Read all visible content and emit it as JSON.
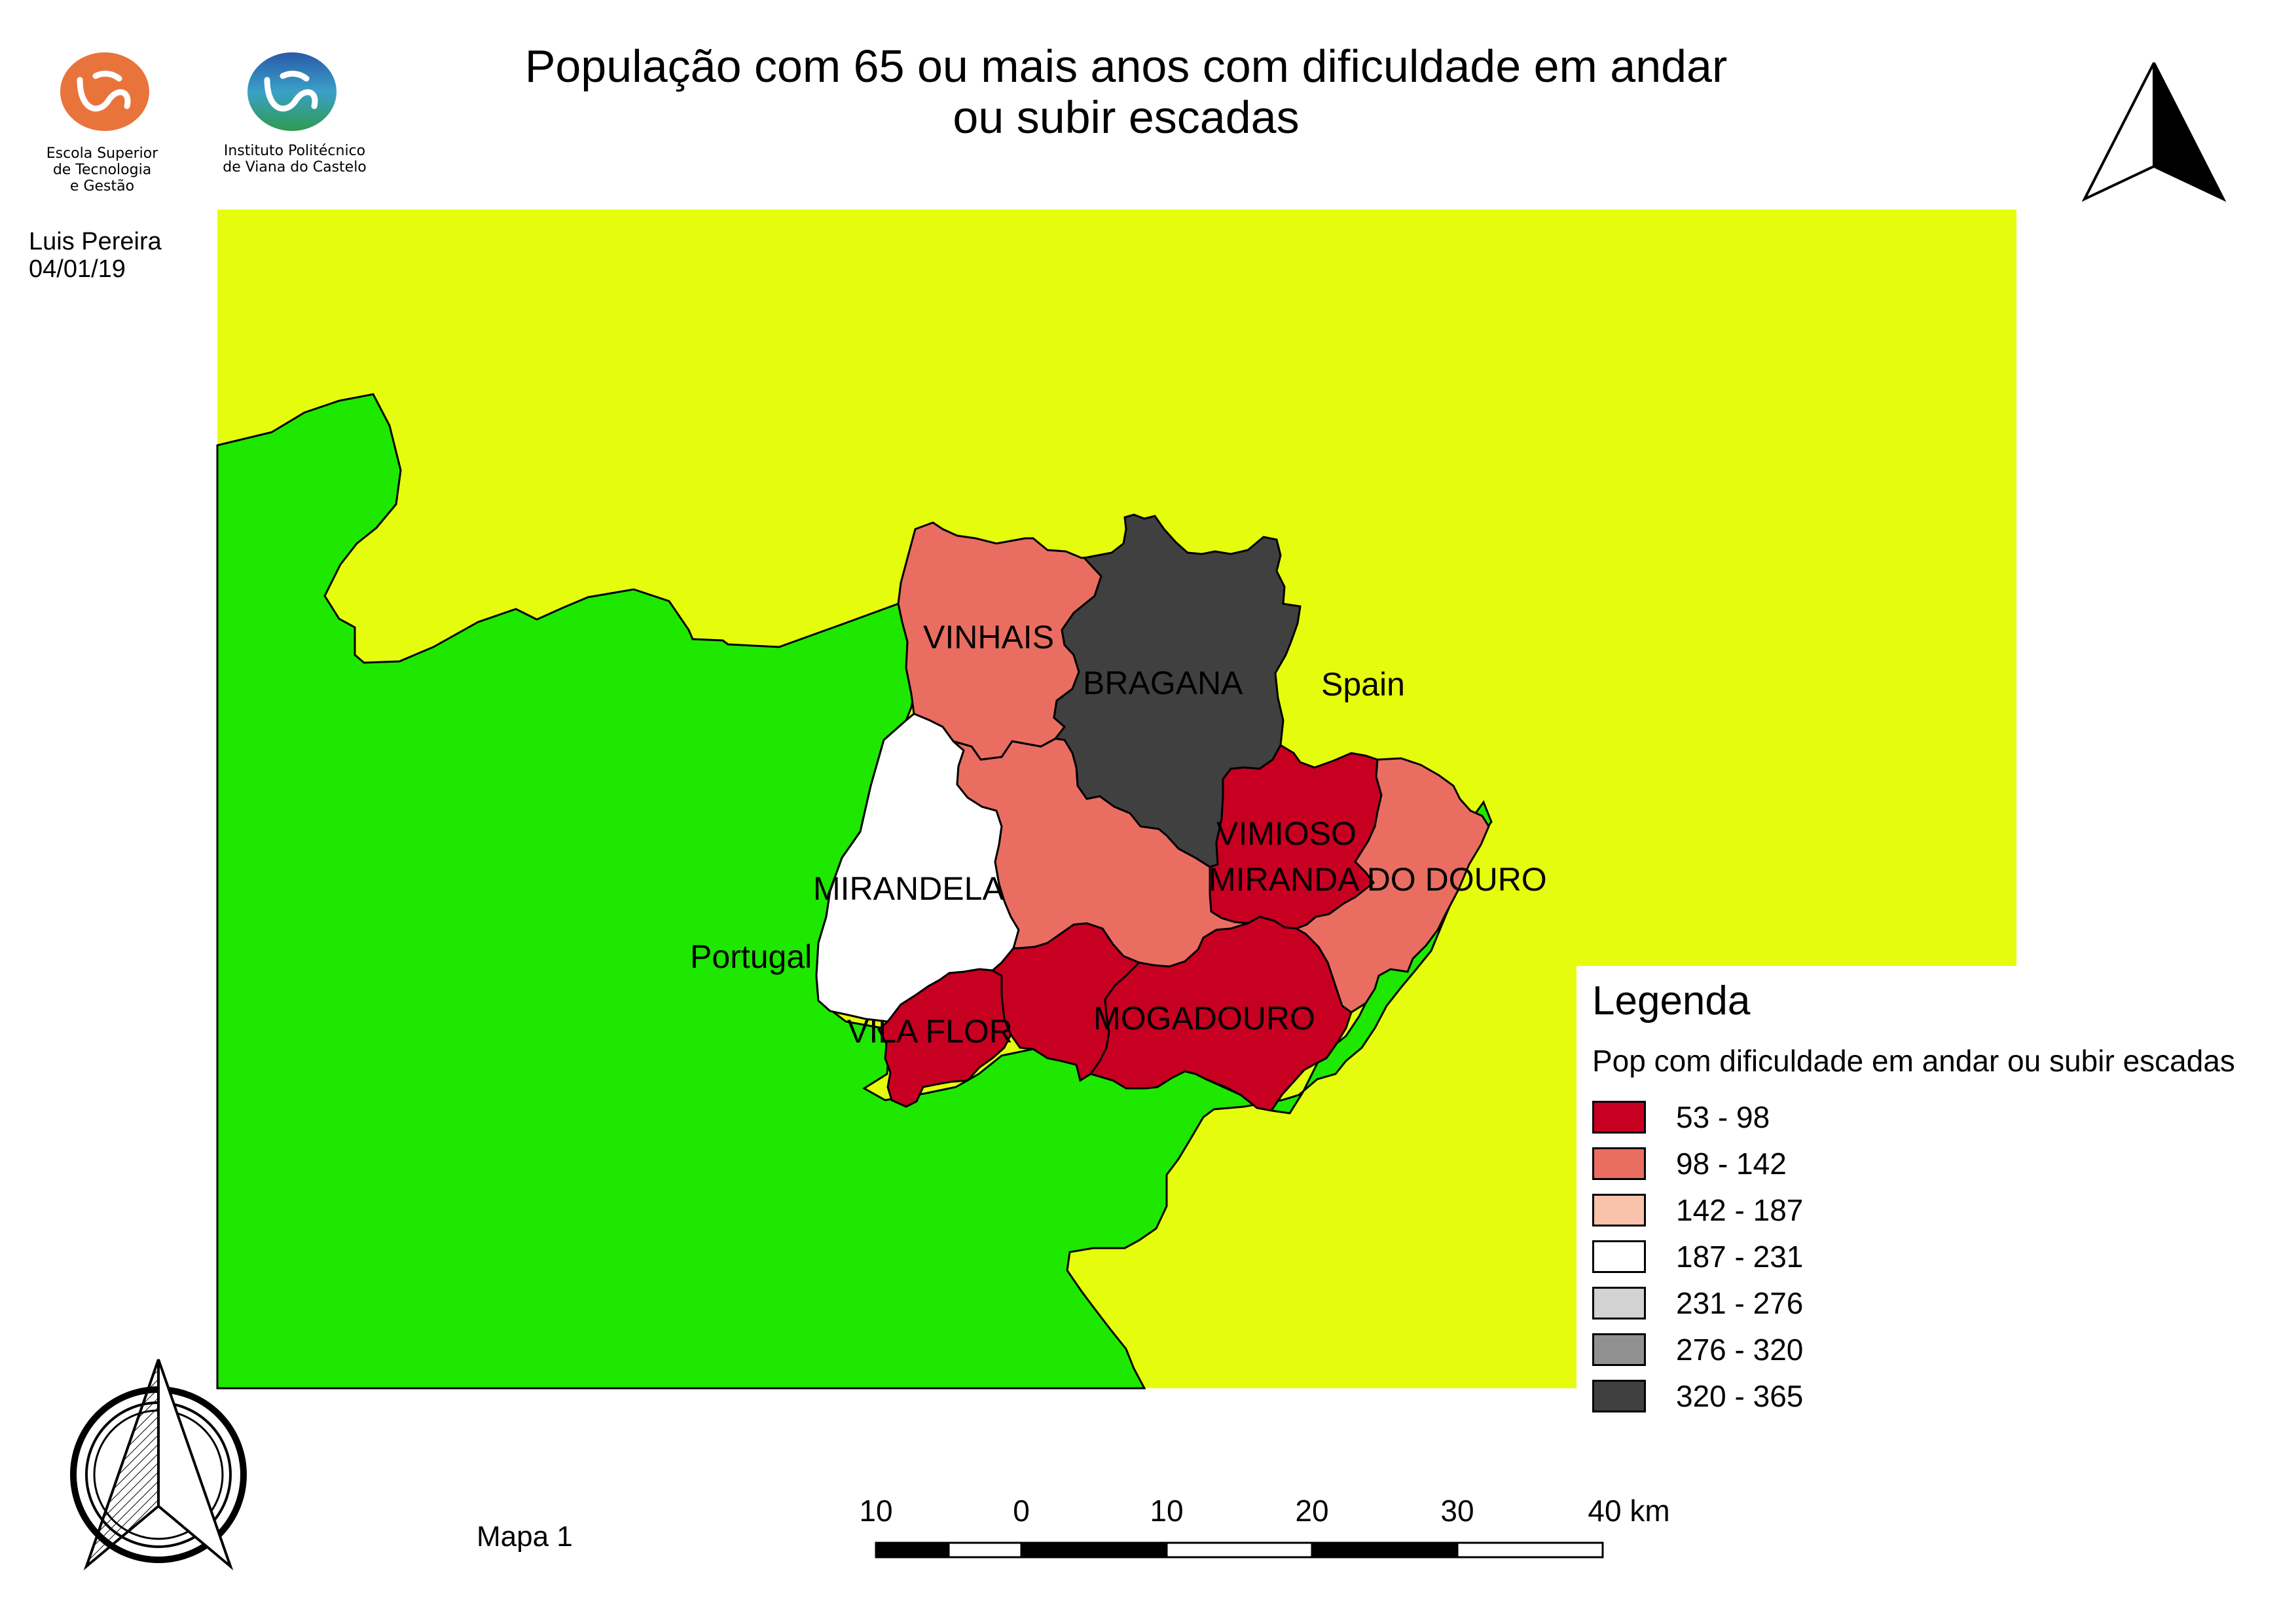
{
  "title_line1": "População com 65 ou mais anos com dificuldade em andar",
  "title_line2": "ou subir escadas",
  "logos": {
    "estg": {
      "line1": "Escola Superior",
      "line2": "de Tecnologia",
      "line3": "e Gestão",
      "color": "#e8743b"
    },
    "ipvc": {
      "line1": "Instituto Politécnico",
      "line2": "de Viana do Castelo",
      "color": "#2f8f4f"
    }
  },
  "author": {
    "name": "Luis Pereira",
    "date": "04/01/19"
  },
  "map_id": "Mapa 1",
  "countries": {
    "portugal": {
      "label": "Portugal",
      "color": "#1ee800"
    },
    "spain": {
      "label": "Spain",
      "color": "#e6fc0d"
    }
  },
  "municipalities": {
    "vinhais": {
      "label": "VINHAIS",
      "value_class": "98 - 142"
    },
    "braganca": {
      "label": "BRAGANA",
      "value_class": "320 - 365"
    },
    "vimioso": {
      "label": "VIMIOSO",
      "value_class": "53 - 98"
    },
    "miranda": {
      "label": "MIRANDA DO DOURO",
      "value_class": "98 - 142"
    },
    "mirandela": {
      "label": "MIRANDELA",
      "value_class": "187 - 231"
    },
    "macedo": {
      "label": "",
      "value_class": "98 - 142"
    },
    "vilaflor": {
      "label": "VILA FLOR",
      "value_class": "53 - 98"
    },
    "alfandega": {
      "label": "",
      "value_class": "53 - 98"
    },
    "mogadouro": {
      "label": "MOGADOURO",
      "value_class": "53 - 98"
    }
  },
  "legend": {
    "title": "Legenda",
    "subtitle": "Pop com dificuldade em andar ou subir escadas",
    "classes": [
      {
        "label": "53 - 98",
        "color": "#c70021"
      },
      {
        "label": "98 - 142",
        "color": "#e96e61"
      },
      {
        "label": "142 - 187",
        "color": "#f8c2ab"
      },
      {
        "label": "187 - 231",
        "color": "#ffffff"
      },
      {
        "label": "231 - 276",
        "color": "#d2d2d2"
      },
      {
        "label": "276 - 320",
        "color": "#909090"
      },
      {
        "label": "320 - 365",
        "color": "#404040"
      }
    ]
  },
  "scale_bar": {
    "ticks": [
      "10",
      "0",
      "10",
      "20",
      "30",
      "40 km"
    ]
  }
}
